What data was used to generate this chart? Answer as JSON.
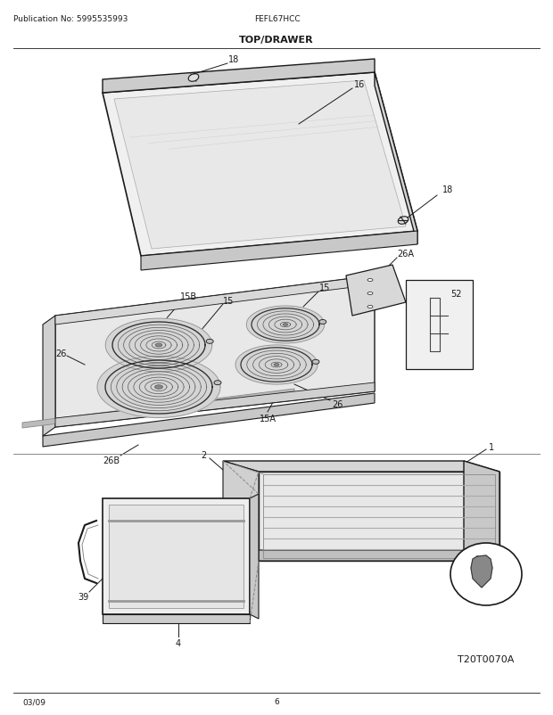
{
  "title": "TOP/DRAWER",
  "pub_no": "Publication No: 5995535993",
  "model": "FEFL67HCC",
  "date": "03/09",
  "page": "6",
  "diagram_code": "T20T0070A",
  "bg_color": "#ffffff",
  "lc": "#1a1a1a",
  "tc": "#1a1a1a"
}
